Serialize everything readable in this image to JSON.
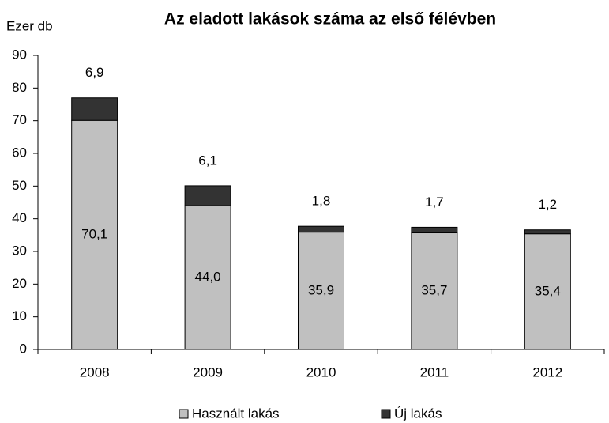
{
  "chart_data": {
    "type": "stacked_bar",
    "title": "Az eladott lakások száma az első félévben",
    "y_label": "Ezer db",
    "categories": [
      "2008",
      "2009",
      "2010",
      "2011",
      "2012"
    ],
    "series": [
      {
        "name": "Használt lakás",
        "color": "#c0c0c0",
        "values": [
          70.1,
          44.0,
          35.9,
          35.7,
          35.4
        ],
        "value_labels": [
          "70,1",
          "44,0",
          "35,9",
          "35,7",
          "35,4"
        ]
      },
      {
        "name": "Új lakás",
        "color": "#333333",
        "values": [
          6.9,
          6.1,
          1.8,
          1.7,
          1.2
        ],
        "value_labels": [
          "6,9",
          "6,1",
          "1,8",
          "1,7",
          "1,2"
        ]
      }
    ],
    "ylim": [
      0,
      90
    ],
    "yticks": [
      0,
      10,
      20,
      30,
      40,
      50,
      60,
      70,
      80,
      90
    ],
    "grid": false,
    "legend": "bottom"
  }
}
